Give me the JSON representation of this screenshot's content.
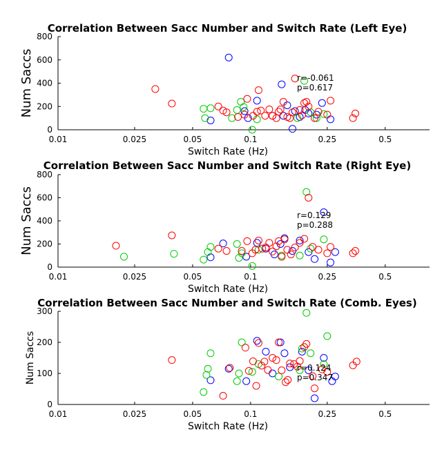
{
  "chart_data": [
    {
      "type": "scatter",
      "title": "Correlation Between Sacc Number and Switch Rate (Left Eye)",
      "xlabel": "Switch Rate (Hz)",
      "ylabel": "Num Saccs",
      "x_scale": "log",
      "xlim": [
        0.01,
        0.85
      ],
      "ylim": [
        0,
        800
      ],
      "xticks": [
        0.01,
        0.025,
        0.05,
        0.1,
        0.25,
        0.5
      ],
      "xtick_labels": [
        "0.01",
        "0.025",
        "0.05",
        "0.1",
        "0.25",
        "0.5"
      ],
      "yticks": [
        0,
        200,
        400,
        600,
        800
      ],
      "ytick_labels": [
        "0",
        "200",
        "400",
        "600",
        "800"
      ],
      "grid": false,
      "stats": {
        "r": "r=-0.061",
        "p": "p=0.617"
      },
      "series": [
        {
          "color": "#0000ff",
          "points": [
            [
              0.077,
              620
            ],
            [
              0.062,
              80
            ],
            [
              0.093,
              160
            ],
            [
              0.097,
              100
            ],
            [
              0.108,
              250
            ],
            [
              0.13,
              120
            ],
            [
              0.145,
              390
            ],
            [
              0.148,
              120
            ],
            [
              0.155,
              210
            ],
            [
              0.165,
              8
            ],
            [
              0.17,
              160
            ],
            [
              0.18,
              110
            ],
            [
              0.192,
              170
            ],
            [
              0.2,
              140
            ],
            [
              0.22,
              130
            ],
            [
              0.235,
              230
            ],
            [
              0.26,
              90
            ]
          ]
        },
        {
          "color": "#00cc00",
          "points": [
            [
              0.057,
              180
            ],
            [
              0.058,
              100
            ],
            [
              0.062,
              185
            ],
            [
              0.08,
              100
            ],
            [
              0.085,
              170
            ],
            [
              0.089,
              240
            ],
            [
              0.092,
              195
            ],
            [
              0.102,
              0
            ],
            [
              0.108,
              90
            ],
            [
              0.175,
              100
            ],
            [
              0.19,
              420
            ],
            [
              0.205,
              150
            ],
            [
              0.22,
              100
            ],
            [
              0.24,
              135
            ]
          ]
        },
        {
          "color": "#ff0000",
          "points": [
            [
              0.032,
              350
            ],
            [
              0.039,
              225
            ],
            [
              0.068,
              200
            ],
            [
              0.072,
              165
            ],
            [
              0.075,
              150
            ],
            [
              0.086,
              110
            ],
            [
              0.093,
              130
            ],
            [
              0.096,
              265
            ],
            [
              0.103,
              120
            ],
            [
              0.108,
              155
            ],
            [
              0.11,
              340
            ],
            [
              0.113,
              165
            ],
            [
              0.119,
              120
            ],
            [
              0.125,
              175
            ],
            [
              0.13,
              120
            ],
            [
              0.136,
              100
            ],
            [
              0.14,
              155
            ],
            [
              0.143,
              175
            ],
            [
              0.148,
              240
            ],
            [
              0.155,
              110
            ],
            [
              0.16,
              100
            ],
            [
              0.165,
              150
            ],
            [
              0.17,
              440
            ],
            [
              0.18,
              170
            ],
            [
              0.185,
              125
            ],
            [
              0.19,
              230
            ],
            [
              0.195,
              240
            ],
            [
              0.2,
              200
            ],
            [
              0.215,
              100
            ],
            [
              0.225,
              155
            ],
            [
              0.25,
              130
            ],
            [
              0.26,
              250
            ],
            [
              0.34,
              100
            ],
            [
              0.35,
              140
            ]
          ]
        }
      ]
    },
    {
      "type": "scatter",
      "title": "Correlation Between Sacc Number and Switch Rate (Right Eye)",
      "xlabel": "Switch Rate (Hz)",
      "ylabel": "Num Saccs",
      "x_scale": "log",
      "xlim": [
        0.01,
        0.85
      ],
      "ylim": [
        0,
        800
      ],
      "xticks": [
        0.01,
        0.025,
        0.05,
        0.1,
        0.25,
        0.5
      ],
      "xtick_labels": [
        "0.01",
        "0.025",
        "0.05",
        "0.1",
        "0.25",
        "0.5"
      ],
      "yticks": [
        0,
        200,
        400,
        600,
        800
      ],
      "ytick_labels": [
        "0",
        "200",
        "400",
        "600",
        "800"
      ],
      "grid": false,
      "stats": {
        "r": "r=0.129",
        "p": "p=0.288"
      },
      "series": [
        {
          "color": "#0000ff",
          "points": [
            [
              0.062,
              85
            ],
            [
              0.072,
              205
            ],
            [
              0.095,
              90
            ],
            [
              0.108,
              210
            ],
            [
              0.12,
              160
            ],
            [
              0.133,
              110
            ],
            [
              0.143,
              200
            ],
            [
              0.15,
              250
            ],
            [
              0.165,
              140
            ],
            [
              0.18,
              230
            ],
            [
              0.2,
              130
            ],
            [
              0.215,
              70
            ],
            [
              0.24,
              475
            ],
            [
              0.26,
              40
            ],
            [
              0.275,
              130
            ]
          ]
        },
        {
          "color": "#00cc00",
          "points": [
            [
              0.022,
              90
            ],
            [
              0.04,
              115
            ],
            [
              0.057,
              65
            ],
            [
              0.06,
              130
            ],
            [
              0.062,
              175
            ],
            [
              0.085,
              200
            ],
            [
              0.087,
              80
            ],
            [
              0.09,
              120
            ],
            [
              0.102,
              10
            ],
            [
              0.11,
              150
            ],
            [
              0.145,
              100
            ],
            [
              0.18,
              100
            ],
            [
              0.195,
              650
            ],
            [
              0.205,
              160
            ],
            [
              0.24,
              240
            ]
          ]
        },
        {
          "color": "#ff0000",
          "points": [
            [
              0.02,
              185
            ],
            [
              0.039,
              275
            ],
            [
              0.068,
              160
            ],
            [
              0.075,
              140
            ],
            [
              0.09,
              140
            ],
            [
              0.096,
              225
            ],
            [
              0.102,
              120
            ],
            [
              0.106,
              150
            ],
            [
              0.11,
              230
            ],
            [
              0.115,
              160
            ],
            [
              0.12,
              170
            ],
            [
              0.125,
              210
            ],
            [
              0.13,
              135
            ],
            [
              0.136,
              180
            ],
            [
              0.14,
              225
            ],
            [
              0.145,
              90
            ],
            [
              0.15,
              240
            ],
            [
              0.155,
              150
            ],
            [
              0.162,
              110
            ],
            [
              0.17,
              170
            ],
            [
              0.18,
              210
            ],
            [
              0.19,
              245
            ],
            [
              0.2,
              600
            ],
            [
              0.21,
              175
            ],
            [
              0.225,
              150
            ],
            [
              0.25,
              120
            ],
            [
              0.26,
              175
            ],
            [
              0.34,
              120
            ],
            [
              0.35,
              140
            ]
          ]
        }
      ]
    },
    {
      "type": "scatter",
      "title": "Correlation Between Sacc Number and Switch Rate (Comb. Eyes)",
      "xlabel": "Switch Rate (Hz)",
      "ylabel": "Num Saccs",
      "x_scale": "log",
      "xlim": [
        0.01,
        0.85
      ],
      "ylim": [
        0,
        300
      ],
      "xticks": [
        0.01,
        0.025,
        0.05,
        0.1,
        0.25,
        0.5
      ],
      "xtick_labels": [
        "0.01",
        "0.025",
        "0.05",
        "0.1",
        "0.25",
        "0.5"
      ],
      "yticks": [
        0,
        100,
        200,
        300
      ],
      "ytick_labels": [
        "0",
        "100",
        "200",
        "300"
      ],
      "grid": false,
      "stats": {
        "r": "r=0.124",
        "p": "p=0.347"
      },
      "series": [
        {
          "color": "#0000ff",
          "points": [
            [
              0.062,
              78
            ],
            [
              0.077,
              115
            ],
            [
              0.095,
              75
            ],
            [
              0.108,
              205
            ],
            [
              0.12,
              170
            ],
            [
              0.13,
              100
            ],
            [
              0.143,
              200
            ],
            [
              0.15,
              165
            ],
            [
              0.16,
              120
            ],
            [
              0.185,
              170
            ],
            [
              0.2,
              110
            ],
            [
              0.215,
              20
            ],
            [
              0.24,
              150
            ],
            [
              0.265,
              75
            ],
            [
              0.275,
              90
            ]
          ]
        },
        {
          "color": "#00cc00",
          "points": [
            [
              0.057,
              40
            ],
            [
              0.059,
              95
            ],
            [
              0.06,
              115
            ],
            [
              0.062,
              165
            ],
            [
              0.085,
              75
            ],
            [
              0.087,
              100
            ],
            [
              0.09,
              200
            ],
            [
              0.102,
              105
            ],
            [
              0.11,
              130
            ],
            [
              0.14,
              90
            ],
            [
              0.18,
              110
            ],
            [
              0.185,
              180
            ],
            [
              0.195,
              295
            ],
            [
              0.205,
              165
            ],
            [
              0.24,
              130
            ],
            [
              0.25,
              220
            ]
          ]
        },
        {
          "color": "#ff0000",
          "points": [
            [
              0.039,
              143
            ],
            [
              0.072,
              28
            ],
            [
              0.078,
              118
            ],
            [
              0.094,
              183
            ],
            [
              0.098,
              108
            ],
            [
              0.103,
              139
            ],
            [
              0.107,
              60
            ],
            [
              0.11,
              198
            ],
            [
              0.114,
              125
            ],
            [
              0.118,
              138
            ],
            [
              0.123,
              111
            ],
            [
              0.13,
              150
            ],
            [
              0.136,
              143
            ],
            [
              0.14,
              200
            ],
            [
              0.145,
              110
            ],
            [
              0.152,
              72
            ],
            [
              0.156,
              79
            ],
            [
              0.16,
              132
            ],
            [
              0.168,
              130
            ],
            [
              0.175,
              122
            ],
            [
              0.18,
              140
            ],
            [
              0.19,
              185
            ],
            [
              0.195,
              195
            ],
            [
              0.21,
              91
            ],
            [
              0.215,
              52
            ],
            [
              0.235,
              113
            ],
            [
              0.25,
              105
            ],
            [
              0.34,
              126
            ],
            [
              0.355,
              138
            ]
          ]
        }
      ]
    }
  ]
}
